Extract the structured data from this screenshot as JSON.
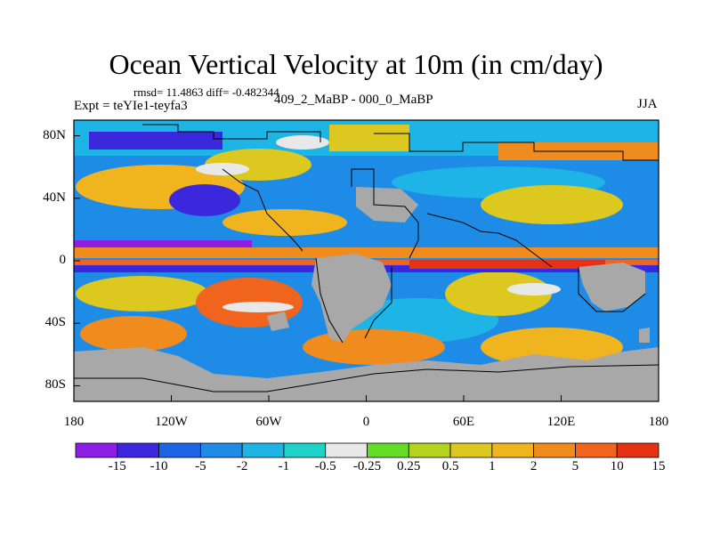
{
  "title": "Ocean Vertical Velocity at 10m (in cm/day)",
  "stats": "rmsd= 11.4863 diff= -0.482344",
  "experiment_label": "Expt = teYIe1-teyfa3",
  "experiment_diff": "409_2_MaBP - 000_0_MaBP",
  "season": "JJA",
  "axes": {
    "lat_ticks": [
      {
        "value": 80,
        "label": "80N"
      },
      {
        "value": 40,
        "label": "40N"
      },
      {
        "value": 0,
        "label": "0"
      },
      {
        "value": -40,
        "label": "40S"
      },
      {
        "value": -80,
        "label": "80S"
      }
    ],
    "lon_ticks": [
      {
        "value": -180,
        "label": "180"
      },
      {
        "value": -120,
        "label": "120W"
      },
      {
        "value": -60,
        "label": "60W"
      },
      {
        "value": 0,
        "label": "0"
      },
      {
        "value": 60,
        "label": "60E"
      },
      {
        "value": 120,
        "label": "120E"
      },
      {
        "value": 180,
        "label": "180"
      }
    ]
  },
  "colorbar": {
    "colors": [
      "#8c1ee6",
      "#3c28dc",
      "#1e64e6",
      "#1e8ce6",
      "#1eb4e6",
      "#1ed2c8",
      "#e8e8e8",
      "#64dc28",
      "#b4d21e",
      "#dcc81e",
      "#f0b41e",
      "#f08c1e",
      "#f0641e",
      "#e63214"
    ],
    "labels": [
      "-15",
      "-10",
      "-5",
      "-2",
      "-1",
      "-0.5",
      "-0.25",
      "0.25",
      "0.5",
      "1",
      "2",
      "5",
      "10",
      "15"
    ]
  },
  "colors": {
    "land": "#a8a8a8",
    "coast": "#000000"
  }
}
